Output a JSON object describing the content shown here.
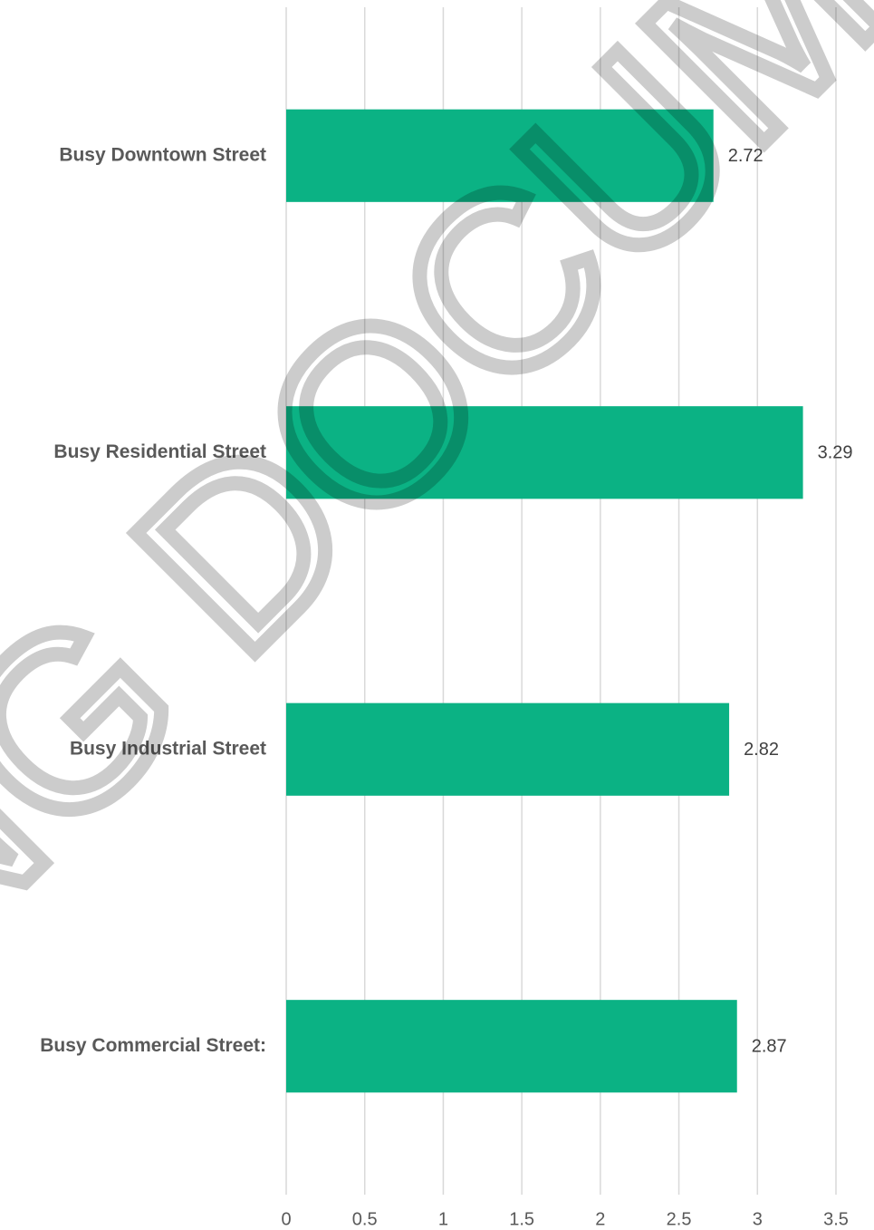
{
  "chart_data": {
    "type": "bar",
    "orientation": "horizontal",
    "categories": [
      "Busy Downtown Street",
      "Busy Residential Street",
      "Busy Industrial Street",
      "Busy Commercial Street:"
    ],
    "values": [
      2.72,
      3.29,
      2.82,
      2.87
    ],
    "color": "#0bb284",
    "xlim": [
      0,
      3.5
    ],
    "xticks": [
      0,
      0.5,
      1,
      1.5,
      2,
      2.5,
      3,
      3.5
    ],
    "grid": true,
    "watermark": "NG DOCUME"
  }
}
